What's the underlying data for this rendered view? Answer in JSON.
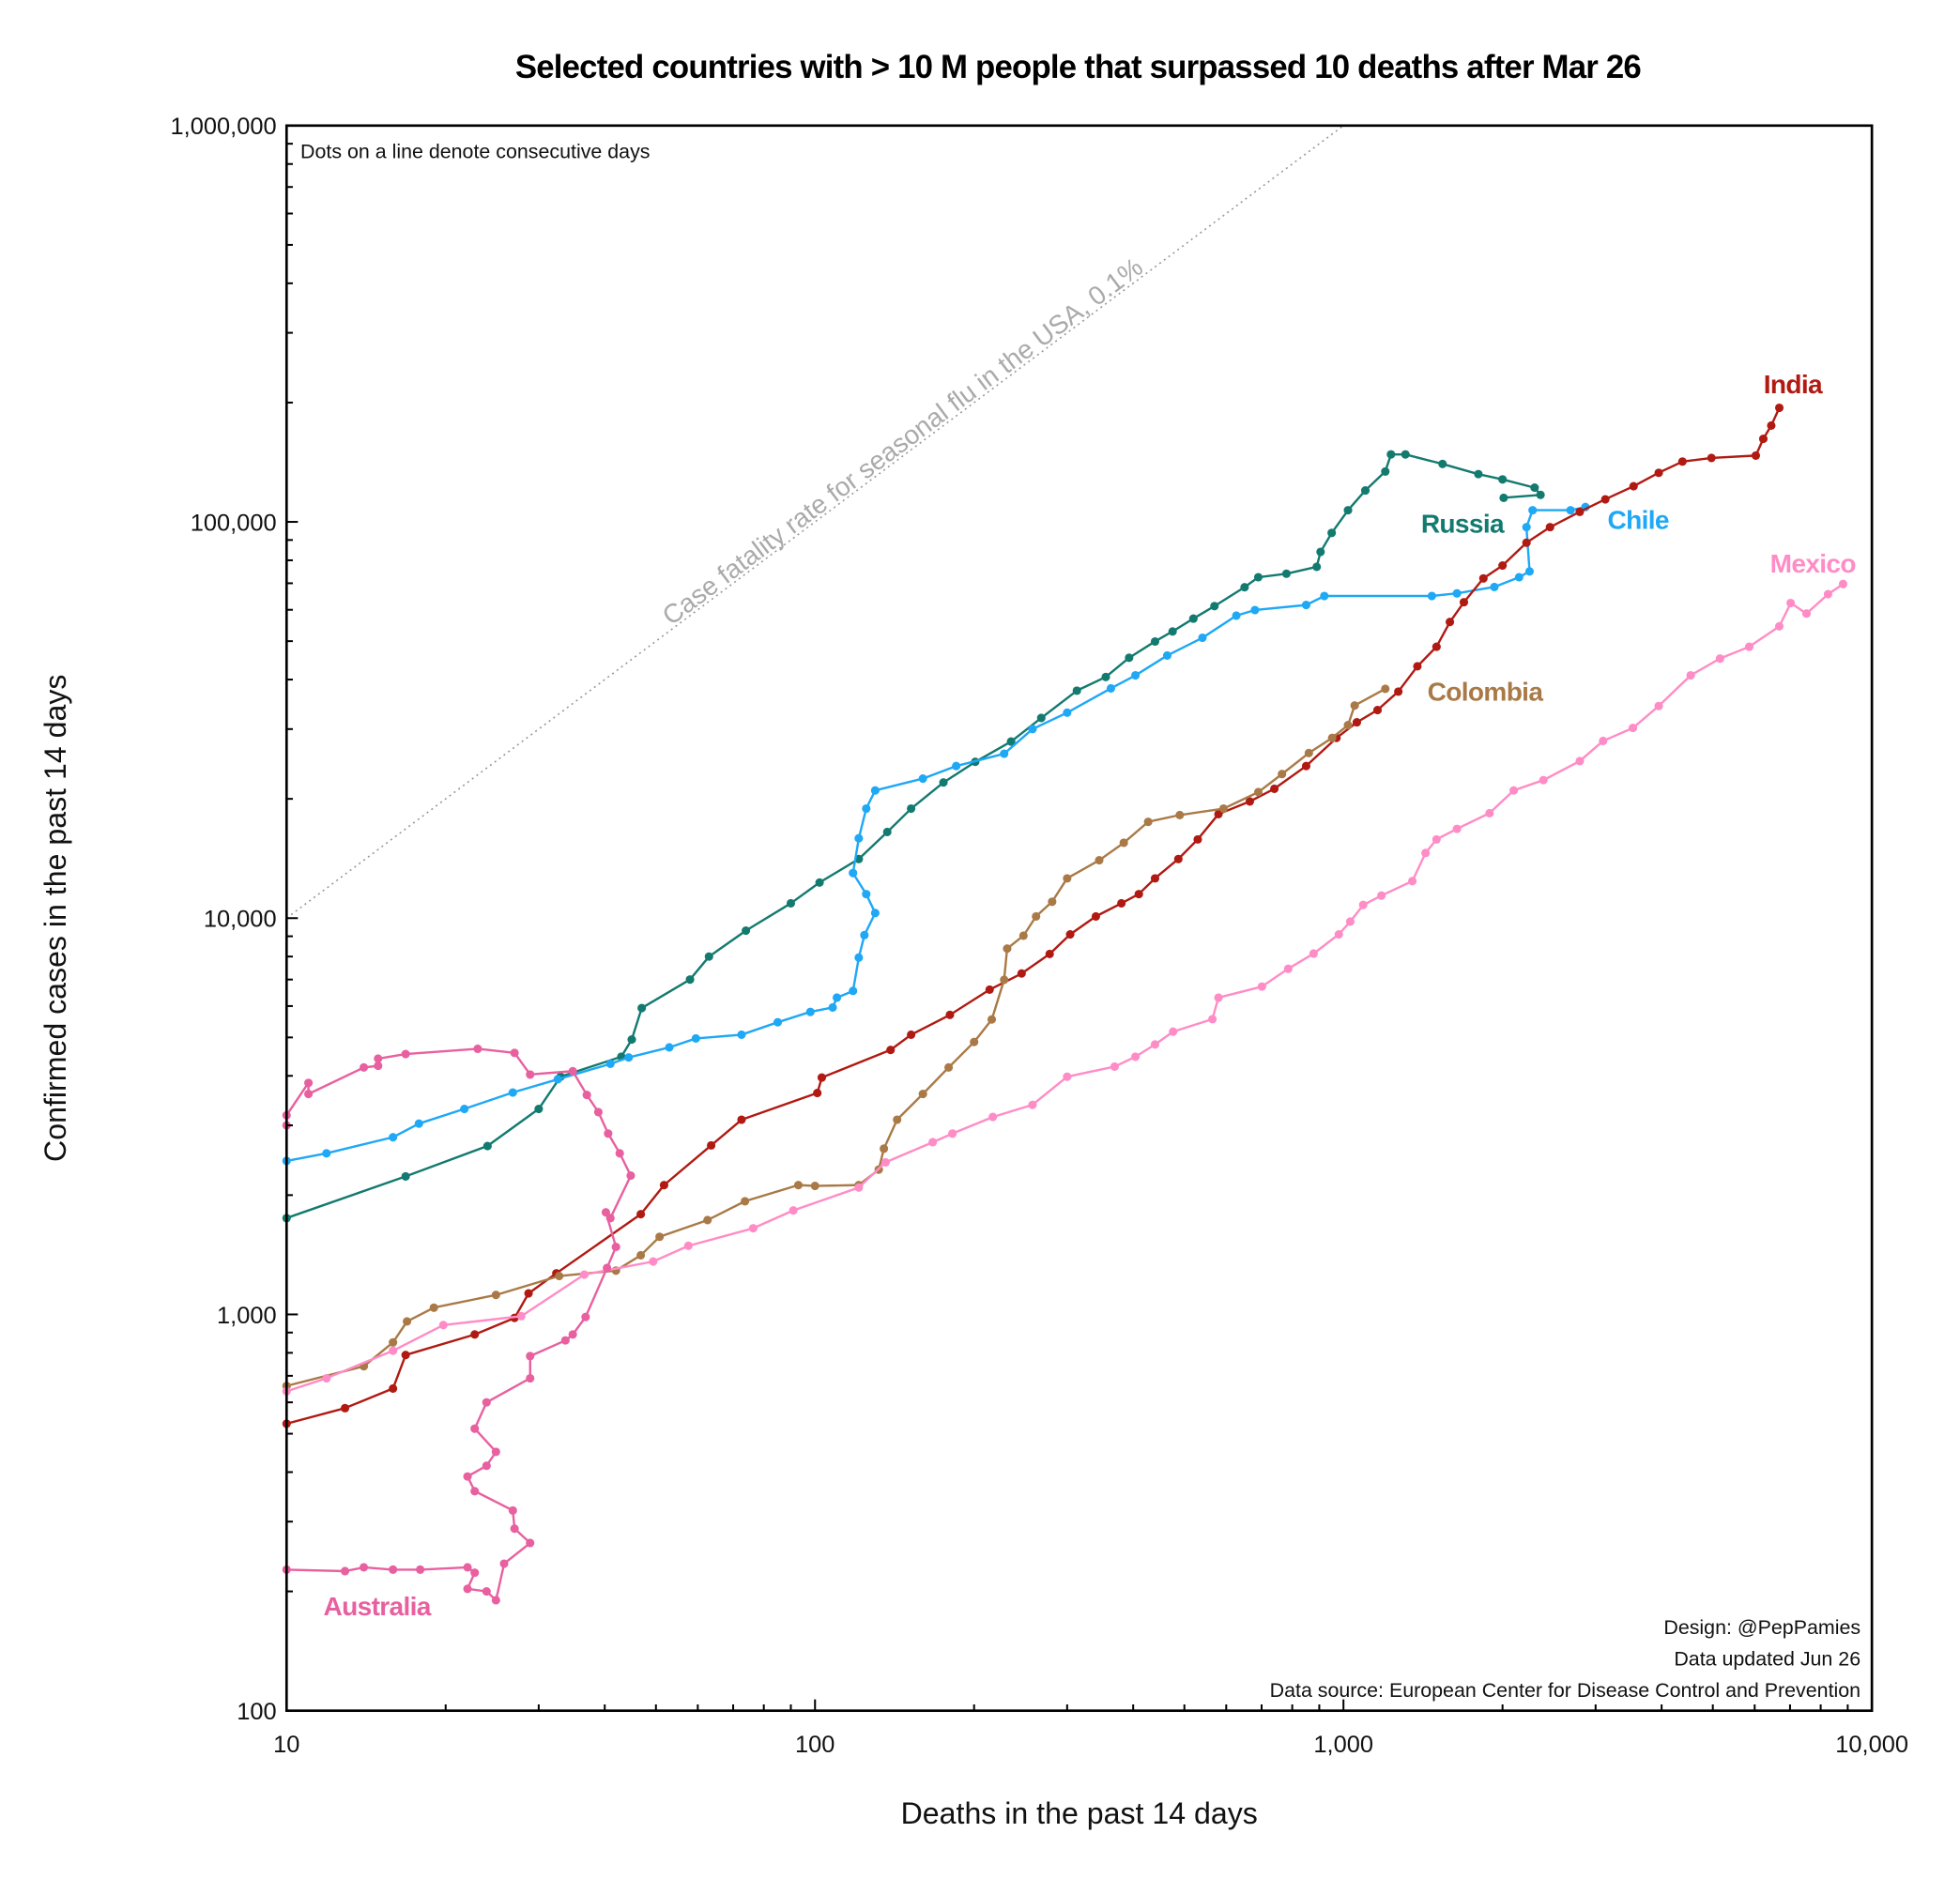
{
  "chart_data": {
    "type": "line",
    "title": "Selected countries with > 10 M people that surpassed 10 deaths after Mar 26",
    "xlabel": "Deaths in the past 14 days",
    "ylabel": "Confirmed cases in the past 14 days",
    "xscale": "log",
    "yscale": "log",
    "xlim": [
      10,
      10000
    ],
    "ylim": [
      100,
      1000000
    ],
    "x_ticks": [
      10,
      100,
      1000,
      10000
    ],
    "x_tick_labels": [
      "10",
      "100",
      "1,000",
      "10,000"
    ],
    "y_ticks": [
      100,
      1000,
      10000,
      100000,
      1000000
    ],
    "y_tick_labels": [
      "100",
      "1,000",
      "10,000",
      "100,000",
      "1,000,000"
    ],
    "grid": false,
    "markers": true,
    "note": "Dots on a line denote consecutive days",
    "reference_line": {
      "label": "Case fatality rate for seasonal flu in the USA, 0.1%",
      "rate": 0.001,
      "color": "#999999",
      "style": "dotted"
    },
    "credits": [
      "Design: @PepPamies",
      "Data updated Jun 26",
      "Data source: European Center for Disease Control and Prevention"
    ],
    "series": [
      {
        "name": "Russia",
        "color": "#137a70",
        "x": [
          10,
          16.8,
          24,
          30,
          33,
          43,
          45,
          47,
          58,
          63,
          74,
          90,
          102,
          121,
          137,
          152,
          175,
          201,
          235,
          268,
          313,
          355,
          393,
          440,
          475,
          520,
          570,
          650,
          690,
          780,
          890,
          905,
          950,
          1020,
          1100,
          1200,
          1230,
          1310,
          1540,
          1800,
          2000,
          2300,
          2360,
          2010
        ],
        "y": [
          1750,
          2230,
          2660,
          3300,
          3980,
          4470,
          4940,
          5930,
          7000,
          8000,
          9300,
          10900,
          12300,
          14100,
          16500,
          18900,
          22000,
          24800,
          27900,
          32000,
          37500,
          40600,
          45400,
          49900,
          52900,
          57000,
          61300,
          68400,
          72500,
          74000,
          77000,
          84000,
          93800,
          107000,
          120000,
          134000,
          148000,
          148000,
          140000,
          132000,
          128000,
          122000,
          117000,
          115000
        ]
      },
      {
        "name": "Chile",
        "color": "#1ea8f5",
        "x": [
          10,
          11.9,
          15.9,
          17.8,
          21.7,
          26.8,
          32.6,
          41,
          44.4,
          53,
          59.5,
          72.6,
          85,
          98,
          108,
          110,
          118,
          121,
          124,
          130,
          125,
          118,
          121,
          125,
          130,
          160,
          185,
          228,
          258,
          300,
          363,
          404,
          464,
          541,
          627,
          680,
          850,
          920,
          1470,
          1640,
          1930,
          2150,
          2250,
          2220,
          2280,
          2690,
          2870
        ],
        "y": [
          2440,
          2550,
          2800,
          3030,
          3300,
          3630,
          3920,
          4290,
          4450,
          4720,
          4970,
          5080,
          5460,
          5800,
          5950,
          6300,
          6550,
          7950,
          9060,
          10300,
          11500,
          13000,
          15900,
          18900,
          21000,
          22500,
          24200,
          26000,
          30000,
          33000,
          38000,
          41000,
          46000,
          51000,
          58000,
          59900,
          61700,
          65000,
          65000,
          66000,
          68500,
          72500,
          75000,
          97000,
          107000,
          107000,
          109000
        ]
      },
      {
        "name": "India",
        "color": "#b01a12",
        "x": [
          10,
          12.9,
          15.9,
          16.8,
          22.7,
          27,
          28.7,
          32.4,
          46.8,
          51.8,
          63.6,
          72.6,
          101,
          103,
          139,
          152,
          180,
          214,
          246,
          278,
          304,
          340,
          380,
          410,
          440,
          487,
          530,
          580,
          665,
          740,
          850,
          970,
          1060,
          1160,
          1270,
          1380,
          1500,
          1590,
          1690,
          1840,
          2000,
          2220,
          2460,
          2800,
          3130,
          3540,
          3950,
          4380,
          4970,
          6030,
          6230,
          6450,
          6680
        ],
        "y": [
          530,
          580,
          650,
          790,
          890,
          980,
          1130,
          1270,
          1790,
          2120,
          2670,
          3100,
          3620,
          3960,
          4650,
          5080,
          5700,
          6600,
          7250,
          8120,
          9100,
          10100,
          10900,
          11500,
          12600,
          14100,
          15800,
          18300,
          19700,
          21200,
          24200,
          28500,
          31200,
          33500,
          37300,
          43200,
          48400,
          55900,
          62700,
          72000,
          77600,
          88600,
          97000,
          106000,
          114000,
          123000,
          133000,
          142000,
          145000,
          147000,
          162000,
          175000,
          194000
        ]
      },
      {
        "name": "Colombia",
        "color": "#a97a47",
        "x": [
          10,
          14,
          15.9,
          16.9,
          19,
          24.9,
          32.8,
          42,
          46.8,
          50.8,
          62.6,
          73.7,
          93,
          100,
          121,
          132,
          135,
          143,
          160,
          179,
          200,
          216,
          228,
          231,
          248,
          262,
          281,
          300,
          345,
          384,
          427,
          490,
          593,
          690,
          765,
          860,
          952,
          1020,
          1050,
          1200
        ],
        "y": [
          660,
          740,
          850,
          960,
          1040,
          1120,
          1250,
          1290,
          1410,
          1570,
          1730,
          1930,
          2120,
          2110,
          2120,
          2320,
          2620,
          3100,
          3600,
          4200,
          4870,
          5550,
          6990,
          8380,
          9030,
          10100,
          11000,
          12600,
          14000,
          15500,
          17500,
          18200,
          18900,
          20800,
          23100,
          26100,
          28500,
          30700,
          34400,
          37900
        ]
      },
      {
        "name": "Mexico",
        "color": "#ff8cc6",
        "x": [
          10,
          11.9,
          15.9,
          19.8,
          27.8,
          36.6,
          49.4,
          57.6,
          76.4,
          91,
          121,
          136,
          167,
          182,
          217,
          258,
          300,
          369,
          404,
          440,
          476,
          565,
          580,
          701,
          786,
          878,
          980,
          1030,
          1090,
          1180,
          1350,
          1430,
          1500,
          1640,
          1890,
          2100,
          2390,
          2800,
          3100,
          3530,
          3950,
          4540,
          5160,
          5860,
          6680,
          7020,
          7520,
          8260,
          8820
        ],
        "y": [
          640,
          690,
          810,
          940,
          990,
          1260,
          1360,
          1490,
          1650,
          1830,
          2090,
          2420,
          2720,
          2860,
          3150,
          3380,
          3980,
          4220,
          4470,
          4800,
          5170,
          5560,
          6300,
          6720,
          7450,
          8140,
          9100,
          9800,
          10800,
          11400,
          12400,
          14600,
          15800,
          16800,
          18400,
          21000,
          22300,
          24900,
          28000,
          30200,
          34300,
          41000,
          45200,
          48400,
          54500,
          62400,
          58700,
          65700,
          69700
        ]
      },
      {
        "name": "Australia",
        "color": "#e8609f",
        "x": [
          10,
          12.9,
          14,
          15.9,
          17.9,
          22,
          22.7,
          22,
          23.9,
          24.9,
          25.8,
          28.9,
          27,
          26.8,
          22.7,
          22,
          23.9,
          24.9,
          22.7,
          23.9,
          28.9,
          28.9,
          33.7,
          34.8,
          36.8,
          40.4,
          42,
          40.2,
          41,
          44.8,
          42.7,
          40.6,
          38.9,
          37,
          34.8,
          28.9,
          27,
          23,
          16.8,
          14.9,
          14.9,
          14,
          11,
          11,
          10,
          10
        ],
        "y": [
          227,
          225,
          230,
          227,
          227,
          230,
          223,
          203,
          200,
          190,
          235,
          265,
          288,
          320,
          358,
          390,
          415,
          450,
          515,
          600,
          690,
          785,
          860,
          890,
          985,
          1310,
          1480,
          1810,
          1750,
          2240,
          2550,
          2860,
          3240,
          3580,
          4110,
          4030,
          4570,
          4680,
          4540,
          4420,
          4240,
          4200,
          3600,
          3840,
          3180,
          3000
        ]
      }
    ]
  }
}
